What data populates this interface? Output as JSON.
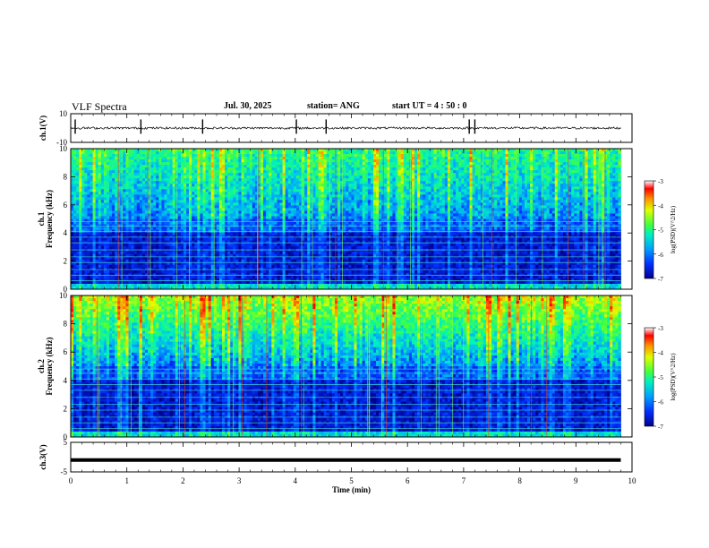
{
  "header": {
    "title": "VLF Spectra",
    "date": "Jul. 30, 2025",
    "station": "station= ANG",
    "start": "start UT = 4 : 50 : 0"
  },
  "chart_data": [
    {
      "type": "line",
      "panel": "ch1-waveform",
      "ylabel": "ch.1(V)",
      "ylim": [
        -10,
        10
      ],
      "yticks": [
        "10",
        "-10"
      ],
      "x": [
        0,
        10
      ],
      "description_values": {
        "baseline": 0,
        "noise_amplitude": 1.5,
        "spike_times_min": [
          0.08,
          1.25,
          2.35,
          4.02,
          4.55,
          7.1,
          7.2
        ]
      }
    },
    {
      "type": "heatmap",
      "panel": "ch1-spectrogram",
      "ylabel": "ch.1\nFrequency (kHz)",
      "xlim": [
        0,
        10
      ],
      "ylim": [
        0,
        10
      ],
      "yticks": [
        "0",
        "2",
        "4",
        "6",
        "8",
        "10"
      ],
      "colorbar": {
        "label": "log(PSD)(V^2/Hz)",
        "range": [
          -7,
          -3
        ],
        "ticks": [
          "-3",
          "-4",
          "-5",
          "-6",
          "-7"
        ]
      },
      "data_end_min": 9.8
    },
    {
      "type": "heatmap",
      "panel": "ch2-spectrogram",
      "ylabel": "ch.2\nFrequency (kHz)",
      "xlim": [
        0,
        10
      ],
      "ylim": [
        0,
        10
      ],
      "yticks": [
        "0",
        "2",
        "4",
        "6",
        "8",
        "10"
      ],
      "colorbar": {
        "label": "log(PSD)(V^2/Hz)",
        "range": [
          -7,
          -3
        ],
        "ticks": [
          "-3",
          "-4",
          "-5",
          "-6",
          "-7"
        ]
      },
      "data_end_min": 9.8
    },
    {
      "type": "line",
      "panel": "ch3-waveform",
      "ylabel": "ch.3(V)",
      "ylim": [
        -5,
        5
      ],
      "yticks": [
        "5",
        "-5"
      ],
      "x": [
        0,
        9.8
      ],
      "y": [
        -1,
        -1
      ]
    }
  ],
  "xaxis": {
    "label": "Time (min)",
    "ticks": [
      "0",
      "1",
      "2",
      "3",
      "4",
      "5",
      "6",
      "7",
      "8",
      "9",
      "10"
    ]
  },
  "colors": {
    "colormap": [
      "#0000a0",
      "#0050ff",
      "#00c8ff",
      "#00ff90",
      "#a0ff00",
      "#ffff00",
      "#ff8000",
      "#ff0000"
    ]
  }
}
